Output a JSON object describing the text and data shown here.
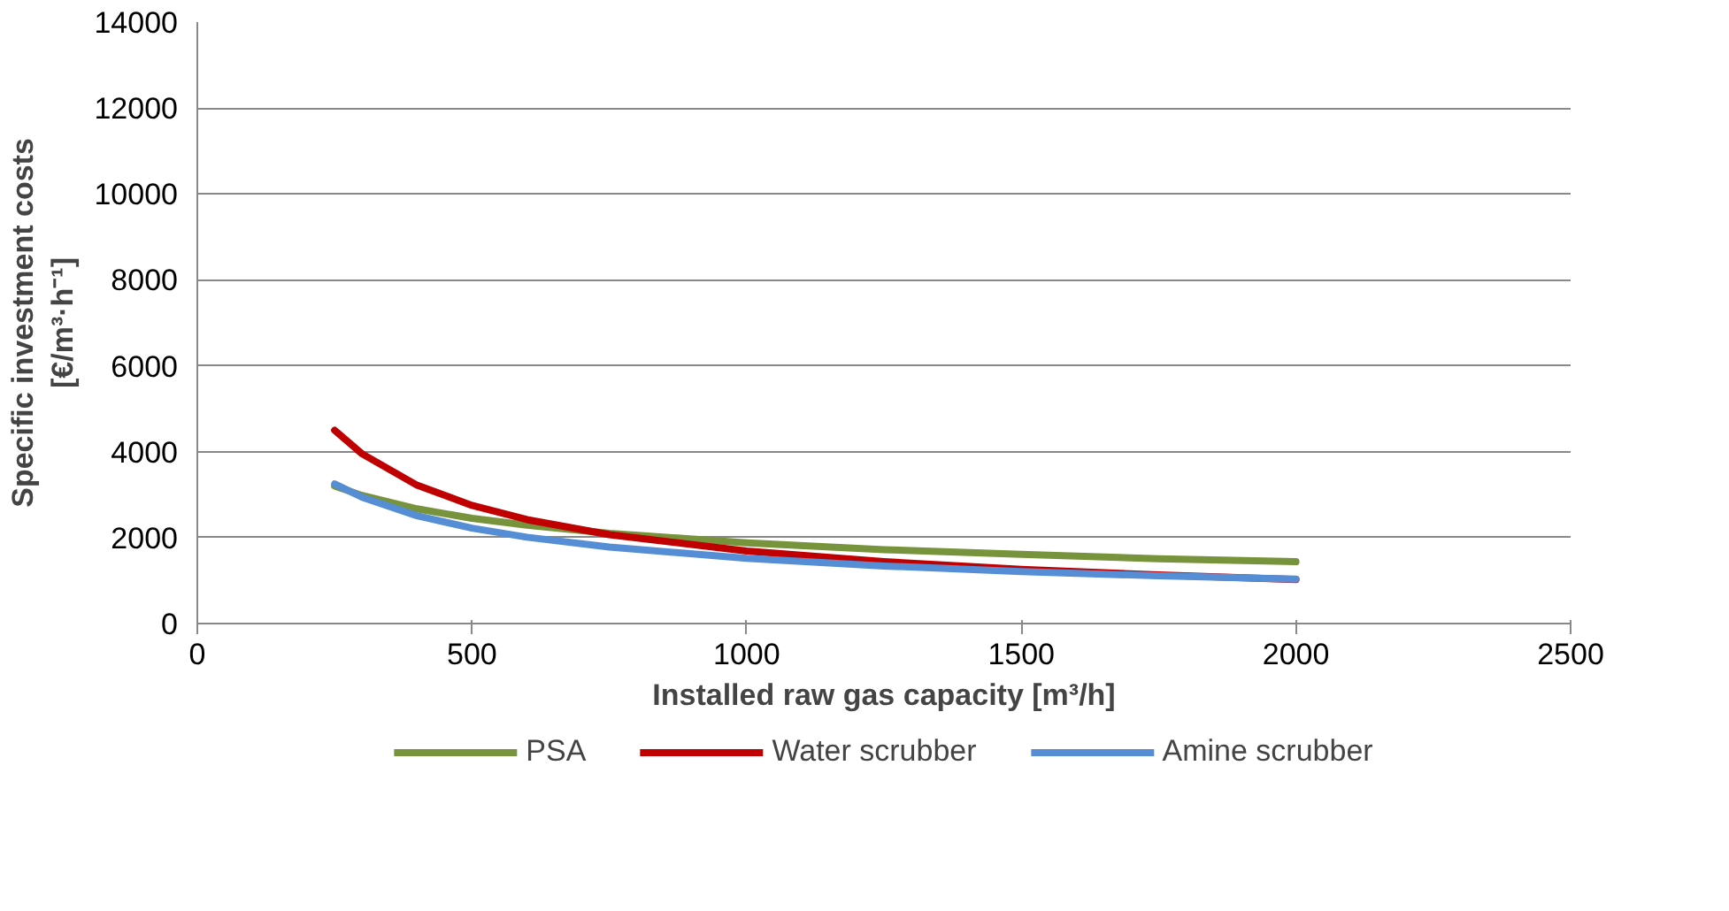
{
  "chart_data": {
    "type": "line",
    "xlabel": "Installed raw gas capacity [m³/h]",
    "ylabel": "Specific investment costs\n[€/m³·h⁻¹]",
    "x": [
      250,
      300,
      400,
      500,
      600,
      750,
      1000,
      1250,
      1500,
      1750,
      2000
    ],
    "series": [
      {
        "name": "PSA",
        "color": "#77933c",
        "values": [
          3200,
          2980,
          2670,
          2450,
          2290,
          2100,
          1880,
          1720,
          1610,
          1510,
          1440
        ]
      },
      {
        "name": "Water scrubber",
        "color": "#c00000",
        "values": [
          4500,
          3950,
          3220,
          2750,
          2420,
          2070,
          1690,
          1440,
          1260,
          1130,
          1025
        ]
      },
      {
        "name": "Amine scrubber",
        "color": "#558ed5",
        "values": [
          3250,
          2940,
          2510,
          2220,
          2010,
          1780,
          1520,
          1340,
          1210,
          1110,
          1035
        ]
      }
    ],
    "xlim": [
      0,
      2500
    ],
    "xticks": [
      0,
      500,
      1000,
      1500,
      2000,
      2500
    ],
    "ylim": [
      0,
      14000
    ],
    "yticks": [
      0,
      2000,
      4000,
      6000,
      8000,
      10000,
      12000,
      14000
    ],
    "grid": "y",
    "legend": "bottom",
    "marker": "none",
    "line_style": "solid"
  }
}
